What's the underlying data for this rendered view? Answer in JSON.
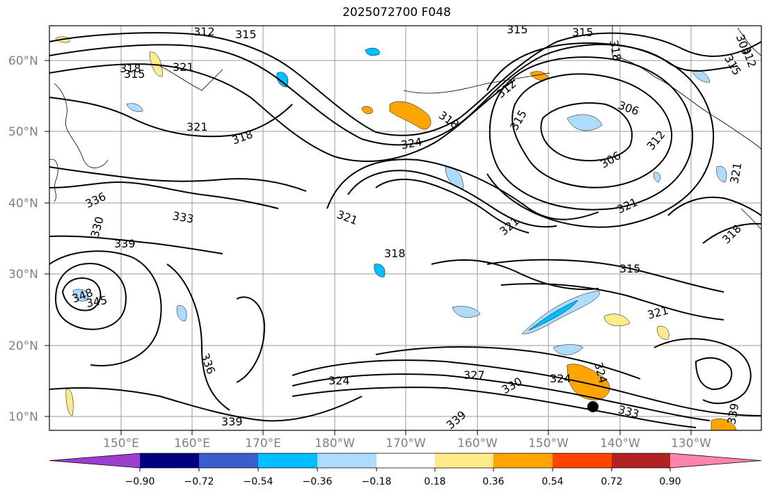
{
  "title": "2025072700 F048",
  "lat_labels": [
    "60°N",
    "50°N",
    "40°N",
    "30°N",
    "20°N",
    "10°N"
  ],
  "lon_labels": [
    "150°E",
    "160°E",
    "170°E",
    "180°W",
    "170°W",
    "160°W",
    "150°W",
    "140°W",
    "130°W"
  ],
  "contour_labels": [
    "312",
    "315",
    "315",
    "315",
    "318",
    "309",
    "312",
    "315",
    "321",
    "318",
    "315",
    "321",
    "318",
    "324",
    "318",
    "312",
    "315",
    "306",
    "306",
    "312",
    "336",
    "333",
    "321",
    "321",
    "321",
    "318",
    "330",
    "339",
    "318",
    "315",
    "348",
    "345",
    "321",
    "336",
    "324",
    "327",
    "330",
    "324",
    "324",
    "333",
    "339",
    "339",
    "321",
    "339"
  ],
  "colorbar": {
    "tick_labels": [
      "−0.90",
      "−0.72",
      "−0.54",
      "−0.36",
      "−0.18",
      "0.18",
      "0.36",
      "0.54",
      "0.72",
      "0.90"
    ],
    "colors": [
      "#9b3fcf",
      "#000080",
      "#3a5fcd",
      "#00bfff",
      "#aedcff",
      "#ffffff",
      "#ffeb8a",
      "#ffa500",
      "#ff4500",
      "#b22222",
      "#ff85b0"
    ]
  }
}
